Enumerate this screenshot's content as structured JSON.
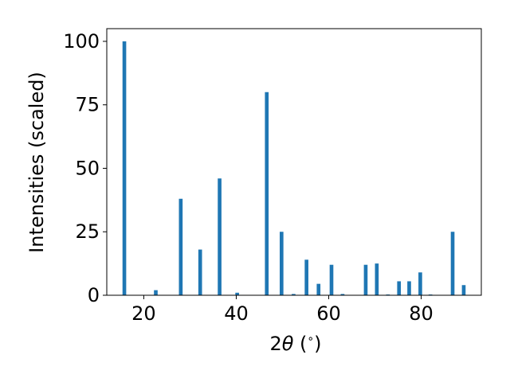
{
  "chart_data": {
    "type": "bar",
    "title": "",
    "xlabel_parts": [
      "2",
      "θ",
      " (",
      "∘",
      ")"
    ],
    "ylabel": "Intensities (scaled)",
    "xlim": [
      12,
      93
    ],
    "ylim": [
      0,
      105
    ],
    "xticks": [
      20,
      40,
      60,
      80
    ],
    "yticks": [
      0,
      25,
      50,
      75,
      100
    ],
    "bar_width": 0.8,
    "color": "#1f77b4",
    "grid": false,
    "x": [
      15.8,
      22.6,
      28.0,
      32.2,
      36.4,
      40.2,
      46.6,
      49.8,
      52.4,
      55.2,
      57.8,
      60.6,
      63.0,
      68.0,
      70.4,
      72.8,
      75.2,
      77.4,
      79.8,
      82.0,
      86.8,
      89.2
    ],
    "values": [
      100,
      2,
      38,
      18,
      46,
      1,
      80,
      25,
      0.5,
      14,
      4.5,
      12,
      0.5,
      12,
      12.5,
      0.3,
      5.5,
      5.5,
      9,
      0.3,
      25,
      4
    ]
  }
}
